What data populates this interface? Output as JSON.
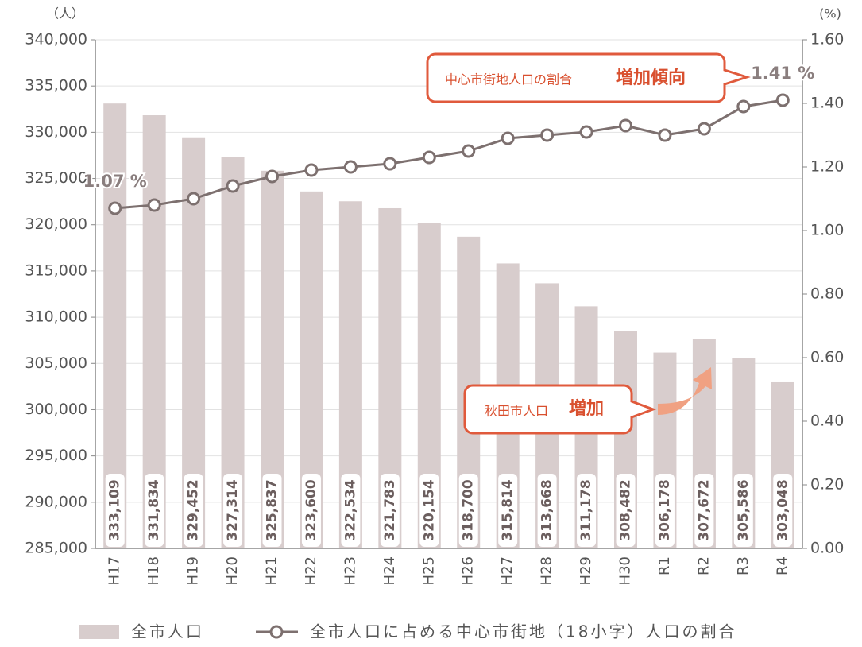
{
  "chart_data": {
    "type": "bar-line",
    "categories": [
      "H17",
      "H18",
      "H19",
      "H20",
      "H21",
      "H22",
      "H23",
      "H24",
      "H25",
      "H26",
      "H27",
      "H28",
      "H29",
      "H30",
      "R1",
      "R2",
      "R3",
      "R4"
    ],
    "series": [
      {
        "name": "全市人口",
        "type": "bar",
        "color": "#d8cdcd",
        "values": [
          333109,
          331834,
          329452,
          327314,
          325837,
          323600,
          322534,
          321783,
          320154,
          318700,
          315814,
          313668,
          311178,
          308482,
          306178,
          307672,
          305586,
          303048
        ],
        "value_labels": [
          "333,109",
          "331,834",
          "329,452",
          "327,314",
          "325,837",
          "323,600",
          "322,534",
          "321,783",
          "320,154",
          "318,700",
          "315,814",
          "313,668",
          "311,178",
          "308,482",
          "306,178",
          "307,672",
          "305,586",
          "303,048"
        ]
      },
      {
        "name": "全市人口に占める中心市街地（18小字）人口の割合",
        "type": "line",
        "axis": "y2",
        "color": "#7d706f",
        "values": [
          1.07,
          1.08,
          1.1,
          1.14,
          1.17,
          1.19,
          1.2,
          1.21,
          1.23,
          1.25,
          1.29,
          1.3,
          1.31,
          1.33,
          1.3,
          1.32,
          1.39,
          1.41
        ],
        "value_labels": [
          "1.07 %",
          null,
          null,
          null,
          null,
          null,
          null,
          null,
          null,
          null,
          null,
          null,
          null,
          null,
          null,
          null,
          null,
          "1.41 %"
        ]
      }
    ],
    "ylabel": "（人）",
    "y2label": "(%)",
    "ylim": [
      285000,
      340000
    ],
    "yticks": [
      {
        "value": 285000,
        "label": "285,000"
      },
      {
        "value": 290000,
        "label": "290,000"
      },
      {
        "value": 295000,
        "label": "295,000"
      },
      {
        "value": 300000,
        "label": "300,000"
      },
      {
        "value": 305000,
        "label": "305,000"
      },
      {
        "value": 310000,
        "label": "310,000"
      },
      {
        "value": 315000,
        "label": "315,000"
      },
      {
        "value": 320000,
        "label": "320,000"
      },
      {
        "value": 325000,
        "label": "325,000"
      },
      {
        "value": 330000,
        "label": "330,000"
      },
      {
        "value": 335000,
        "label": "335,000"
      },
      {
        "value": 340000,
        "label": "340,000"
      }
    ],
    "y2lim": [
      0,
      1.6
    ],
    "y2ticks": [
      {
        "value": 0,
        "label": "0.00"
      },
      {
        "value": 0.2,
        "label": "0.20"
      },
      {
        "value": 0.4,
        "label": "0.40"
      },
      {
        "value": 0.6,
        "label": "0.60"
      },
      {
        "value": 0.8,
        "label": "0.80"
      },
      {
        "value": 1.0,
        "label": "1.00"
      },
      {
        "value": 1.2,
        "label": "1.20"
      },
      {
        "value": 1.4,
        "label": "1.40"
      },
      {
        "value": 1.6,
        "label": "1.60"
      }
    ],
    "grid": true,
    "annotations": [
      {
        "text": "中心市街地人口の割合",
        "emphasis": "増加傾向"
      },
      {
        "text": "秋田市人口",
        "emphasis": "増加"
      }
    ]
  }
}
